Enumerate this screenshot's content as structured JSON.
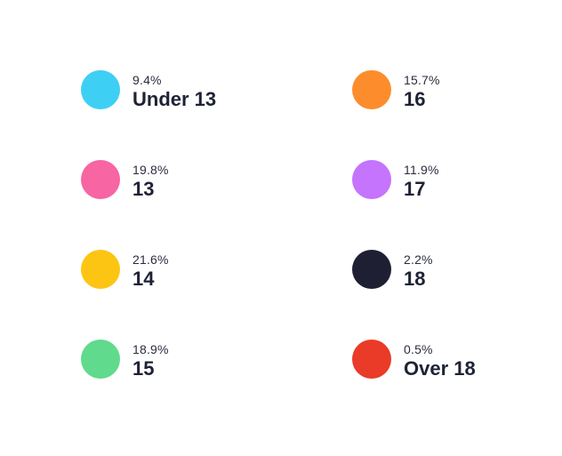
{
  "chart_data": {
    "type": "pie",
    "categories": [
      "Under 13",
      "13",
      "14",
      "15",
      "16",
      "17",
      "18",
      "Over 18"
    ],
    "values": [
      9.4,
      19.8,
      21.6,
      18.9,
      15.7,
      11.9,
      2.2,
      0.5
    ],
    "value_labels": [
      "9.4%",
      "19.8%",
      "21.6%",
      "18.9%",
      "15.7%",
      "11.9%",
      "2.2%",
      "0.5%"
    ],
    "colors": [
      "#3ecff5",
      "#f765a3",
      "#fdc513",
      "#60da8d",
      "#fd8d2c",
      "#c574fd",
      "#1f1f33",
      "#ea3a28"
    ],
    "legend": "two-column"
  }
}
